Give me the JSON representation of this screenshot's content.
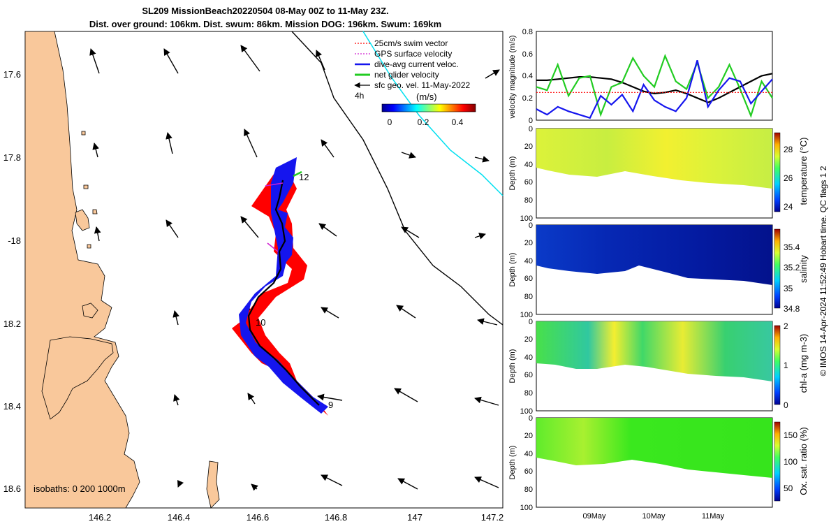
{
  "header": {
    "title_line1": "SL209 MissionBeach20220504 08-May 00Z to 11-May 23Z.",
    "title_line2": "Dist. over ground: 106km. Dist. swum: 86km. Mission DOG: 196km. Swum: 169km"
  },
  "map": {
    "lat_ticks": [
      "17.6",
      "17.8",
      "-18",
      "18.2",
      "18.4",
      "18.6"
    ],
    "lon_ticks": [
      "146.2",
      "146.4",
      "146.6",
      "146.8",
      "147",
      "147.2"
    ],
    "isobaths_label": "isobaths: 0   200  1000m",
    "day_labels": [
      "12",
      "10",
      "9"
    ],
    "legend": [
      {
        "label": "25cm/s swim vector",
        "color": "#ff0000"
      },
      {
        "label": "GPS surface velocity",
        "color": "#d020d0"
      },
      {
        "label": "dive-avg current veloc.",
        "color": "#1515ee"
      },
      {
        "label": "net glider velocity",
        "color": "#22cc22"
      },
      {
        "label": "sfc geo. vel. 11-May-2022",
        "color": "#000000"
      }
    ],
    "vector_scale_label": "4h",
    "colorbar_unit": "(m/s)",
    "colorbar_ticks": [
      "0",
      "0.2",
      "0.4"
    ],
    "colors": {
      "land": "#f9c89b",
      "swim": "#ff0000",
      "track": "#1515ee",
      "cyan": "#00e0f0"
    }
  },
  "panels": {
    "velocity": {
      "ylabel": "velocity magnitude (m/s)",
      "yticks": [
        "0",
        "0.2",
        "0.4",
        "0.6",
        "0.8"
      ]
    },
    "depth_ylabel": "Depth (m)",
    "depth_ticks": [
      "0",
      "20",
      "40",
      "60",
      "80",
      "100"
    ],
    "temperature": {
      "label": "temperature (°C)",
      "ticks": [
        "24",
        "26",
        "28"
      ]
    },
    "salinity": {
      "label": "salinity",
      "ticks": [
        "34.8",
        "35",
        "35.2",
        "35.4"
      ]
    },
    "chla": {
      "label": "chl-a (mg m-3)",
      "ticks": [
        "0",
        "1",
        "2"
      ]
    },
    "oxygen": {
      "label": "Ox. sat. ratio (%)",
      "ticks": [
        "50",
        "100",
        "150"
      ]
    },
    "xticks": [
      "09May",
      "10May",
      "11May"
    ],
    "credit": "© IMOS 14-Apr-2024 11:52:49 Hobart time. QC flags 1  2"
  },
  "chart_data": [
    {
      "type": "line",
      "title": "",
      "ylabel": "velocity magnitude (m/s)",
      "ylim": [
        0,
        0.8
      ],
      "x_range": [
        "08-May 00Z",
        "11-May 23Z"
      ],
      "series": [
        {
          "color": "#000000",
          "values": [
            0.36,
            0.36,
            0.37,
            0.38,
            0.39,
            0.39,
            0.38,
            0.37,
            0.34,
            0.3,
            0.26,
            0.24,
            0.25,
            0.27,
            0.24,
            0.2,
            0.16,
            0.2,
            0.25,
            0.3,
            0.35,
            0.4,
            0.42
          ]
        },
        {
          "color": "#22cc22",
          "values": [
            0.3,
            0.27,
            0.5,
            0.22,
            0.38,
            0.4,
            0.05,
            0.3,
            0.34,
            0.56,
            0.4,
            0.3,
            0.58,
            0.35,
            0.28,
            0.52,
            0.2,
            0.3,
            0.5,
            0.28,
            0.04,
            0.35,
            0.2
          ]
        },
        {
          "color": "#1515ee",
          "values": [
            0.1,
            0.05,
            0.12,
            0.08,
            0.05,
            0.02,
            0.22,
            0.14,
            0.23,
            0.08,
            0.32,
            0.18,
            0.12,
            0.08,
            0.2,
            0.54,
            0.12,
            0.27,
            0.38,
            0.35,
            0.15,
            0.26,
            0.37
          ]
        },
        {
          "color": "#ff0000",
          "values": [
            0.25,
            0.25,
            0.25,
            0.25,
            0.25,
            0.25,
            0.25,
            0.25,
            0.25,
            0.25,
            0.25,
            0.25,
            0.25,
            0.25,
            0.25,
            0.25,
            0.25,
            0.25,
            0.25,
            0.25,
            0.25,
            0.25,
            0.25
          ]
        }
      ]
    },
    {
      "type": "heatmap",
      "label": "temperature (°C)",
      "clim": [
        23.5,
        29.2
      ],
      "ylim": [
        0,
        100
      ],
      "surface_value": 27.5
    },
    {
      "type": "heatmap",
      "label": "salinity",
      "clim": [
        34.8,
        35.6
      ],
      "ylim": [
        0,
        100
      ],
      "surface_value": 34.9
    },
    {
      "type": "heatmap",
      "label": "chl-a (mg m-3)",
      "clim": [
        0,
        2
      ],
      "ylim": [
        0,
        100
      ],
      "surface_value": 1.2
    },
    {
      "type": "heatmap",
      "label": "Ox. sat. ratio (%)",
      "clim": [
        25,
        175
      ],
      "ylim": [
        0,
        100
      ],
      "surface_value": 105
    }
  ]
}
